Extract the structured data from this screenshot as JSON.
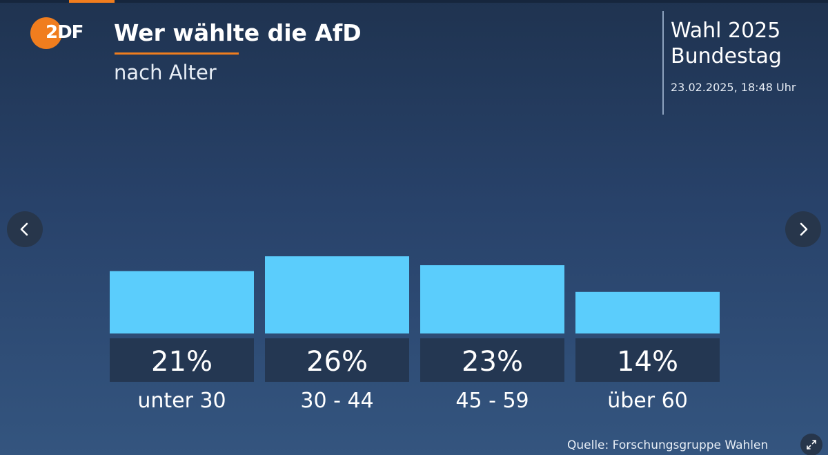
{
  "header": {
    "title": "Wer wählte die AfD",
    "subtitle": "nach Alter",
    "logo_text": "2DF"
  },
  "info": {
    "election": "Wahl 2025",
    "body": "Bundestag",
    "timestamp": "23.02.2025, 18:48 Uhr"
  },
  "footer": {
    "source": "Quelle: Forschungsgruppe Wahlen"
  },
  "icons": {
    "prev": "chevron-left-icon",
    "next": "chevron-right-icon",
    "expand": "expand-icon"
  },
  "colors": {
    "bar": "#5bcdfc",
    "label_box": "#243752",
    "accent": "#f07d1e",
    "background_top": "#1f3350",
    "background_bottom": "#34557f"
  },
  "chart_data": {
    "type": "bar",
    "categories": [
      "unter 30",
      "30 - 44",
      "45 - 59",
      "über 60"
    ],
    "values": [
      21,
      26,
      23,
      14
    ],
    "value_labels": [
      "21%",
      "26%",
      "23%",
      "14%"
    ],
    "unit": "%",
    "ylim": [
      0,
      26
    ],
    "grid": false
  }
}
